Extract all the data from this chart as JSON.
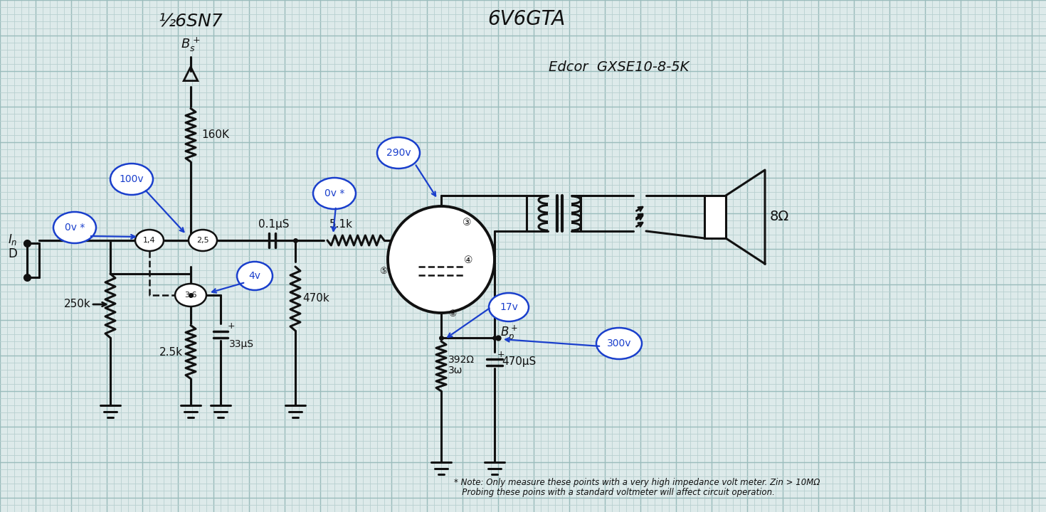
{
  "bg_color": "#ddeaea",
  "grid_minor_color": "#b8d0d0",
  "grid_major_color": "#9abcbc",
  "ink": "#111111",
  "blue": "#1a3fcc",
  "title_6sn7": "½6SN7",
  "title_6v6gta": "6V6GTA",
  "title_edcor": "Edcor  GXSE10-8-5K",
  "note1": "* Note: Only measure these points with a very high impedance volt meter. Zin > 10MΩ",
  "note2": "   Probing these poins with a standard voltmeter will affect circuit operation."
}
